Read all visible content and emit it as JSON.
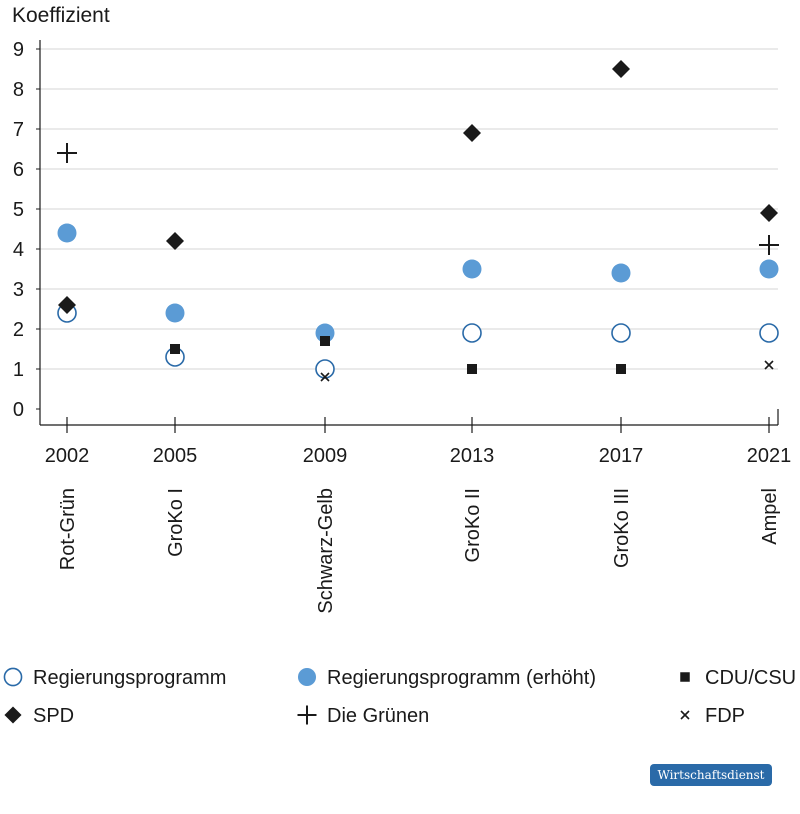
{
  "chart_data": {
    "type": "scatter",
    "ylabel": "Koeffizient",
    "ylim": [
      0,
      9
    ],
    "yticks": [
      0,
      1,
      2,
      3,
      4,
      5,
      6,
      7,
      8,
      9
    ],
    "grid": true,
    "categories": [
      "2002",
      "2005",
      "2009",
      "2013",
      "2017",
      "2021"
    ],
    "coalitions": [
      "Rot-Grün",
      "GroKo I",
      "Schwarz-Gelb",
      "GroKo II",
      "GroKo III",
      "Ampel"
    ],
    "series": [
      {
        "name": "Regierungsprogramm",
        "marker": "open-circle",
        "color": "#2a6aa8",
        "points": [
          {
            "x": "2002",
            "y": 2.4
          },
          {
            "x": "2005",
            "y": 1.3
          },
          {
            "x": "2009",
            "y": 1.0
          },
          {
            "x": "2013",
            "y": 1.9
          },
          {
            "x": "2017",
            "y": 1.9
          },
          {
            "x": "2021",
            "y": 1.9
          }
        ]
      },
      {
        "name": "Regierungsprogramm (erhöht)",
        "marker": "filled-circle",
        "color": "#5b9bd5",
        "points": [
          {
            "x": "2002",
            "y": 4.4
          },
          {
            "x": "2005",
            "y": 2.4
          },
          {
            "x": "2009",
            "y": 1.9
          },
          {
            "x": "2013",
            "y": 3.5
          },
          {
            "x": "2017",
            "y": 3.4
          },
          {
            "x": "2021",
            "y": 3.5
          }
        ]
      },
      {
        "name": "CDU/CSU",
        "marker": "square",
        "color": "#1a1a1a",
        "points": [
          {
            "x": "2005",
            "y": 1.5
          },
          {
            "x": "2009",
            "y": 1.7
          },
          {
            "x": "2013",
            "y": 1.0
          },
          {
            "x": "2017",
            "y": 1.0
          }
        ]
      },
      {
        "name": "SPD",
        "marker": "diamond",
        "color": "#1a1a1a",
        "points": [
          {
            "x": "2002",
            "y": 2.6
          },
          {
            "x": "2005",
            "y": 4.2
          },
          {
            "x": "2013",
            "y": 6.9
          },
          {
            "x": "2017",
            "y": 8.5
          },
          {
            "x": "2021",
            "y": 4.9
          }
        ]
      },
      {
        "name": "Die Grünen",
        "marker": "plus",
        "color": "#1a1a1a",
        "points": [
          {
            "x": "2002",
            "y": 6.4
          },
          {
            "x": "2021",
            "y": 4.1
          }
        ]
      },
      {
        "name": "FDP",
        "marker": "x",
        "color": "#1a1a1a",
        "points": [
          {
            "x": "2009",
            "y": 0.8
          },
          {
            "x": "2021",
            "y": 1.1
          }
        ]
      }
    ]
  },
  "footer": {
    "badge": "Wirtschaftsdienst"
  }
}
